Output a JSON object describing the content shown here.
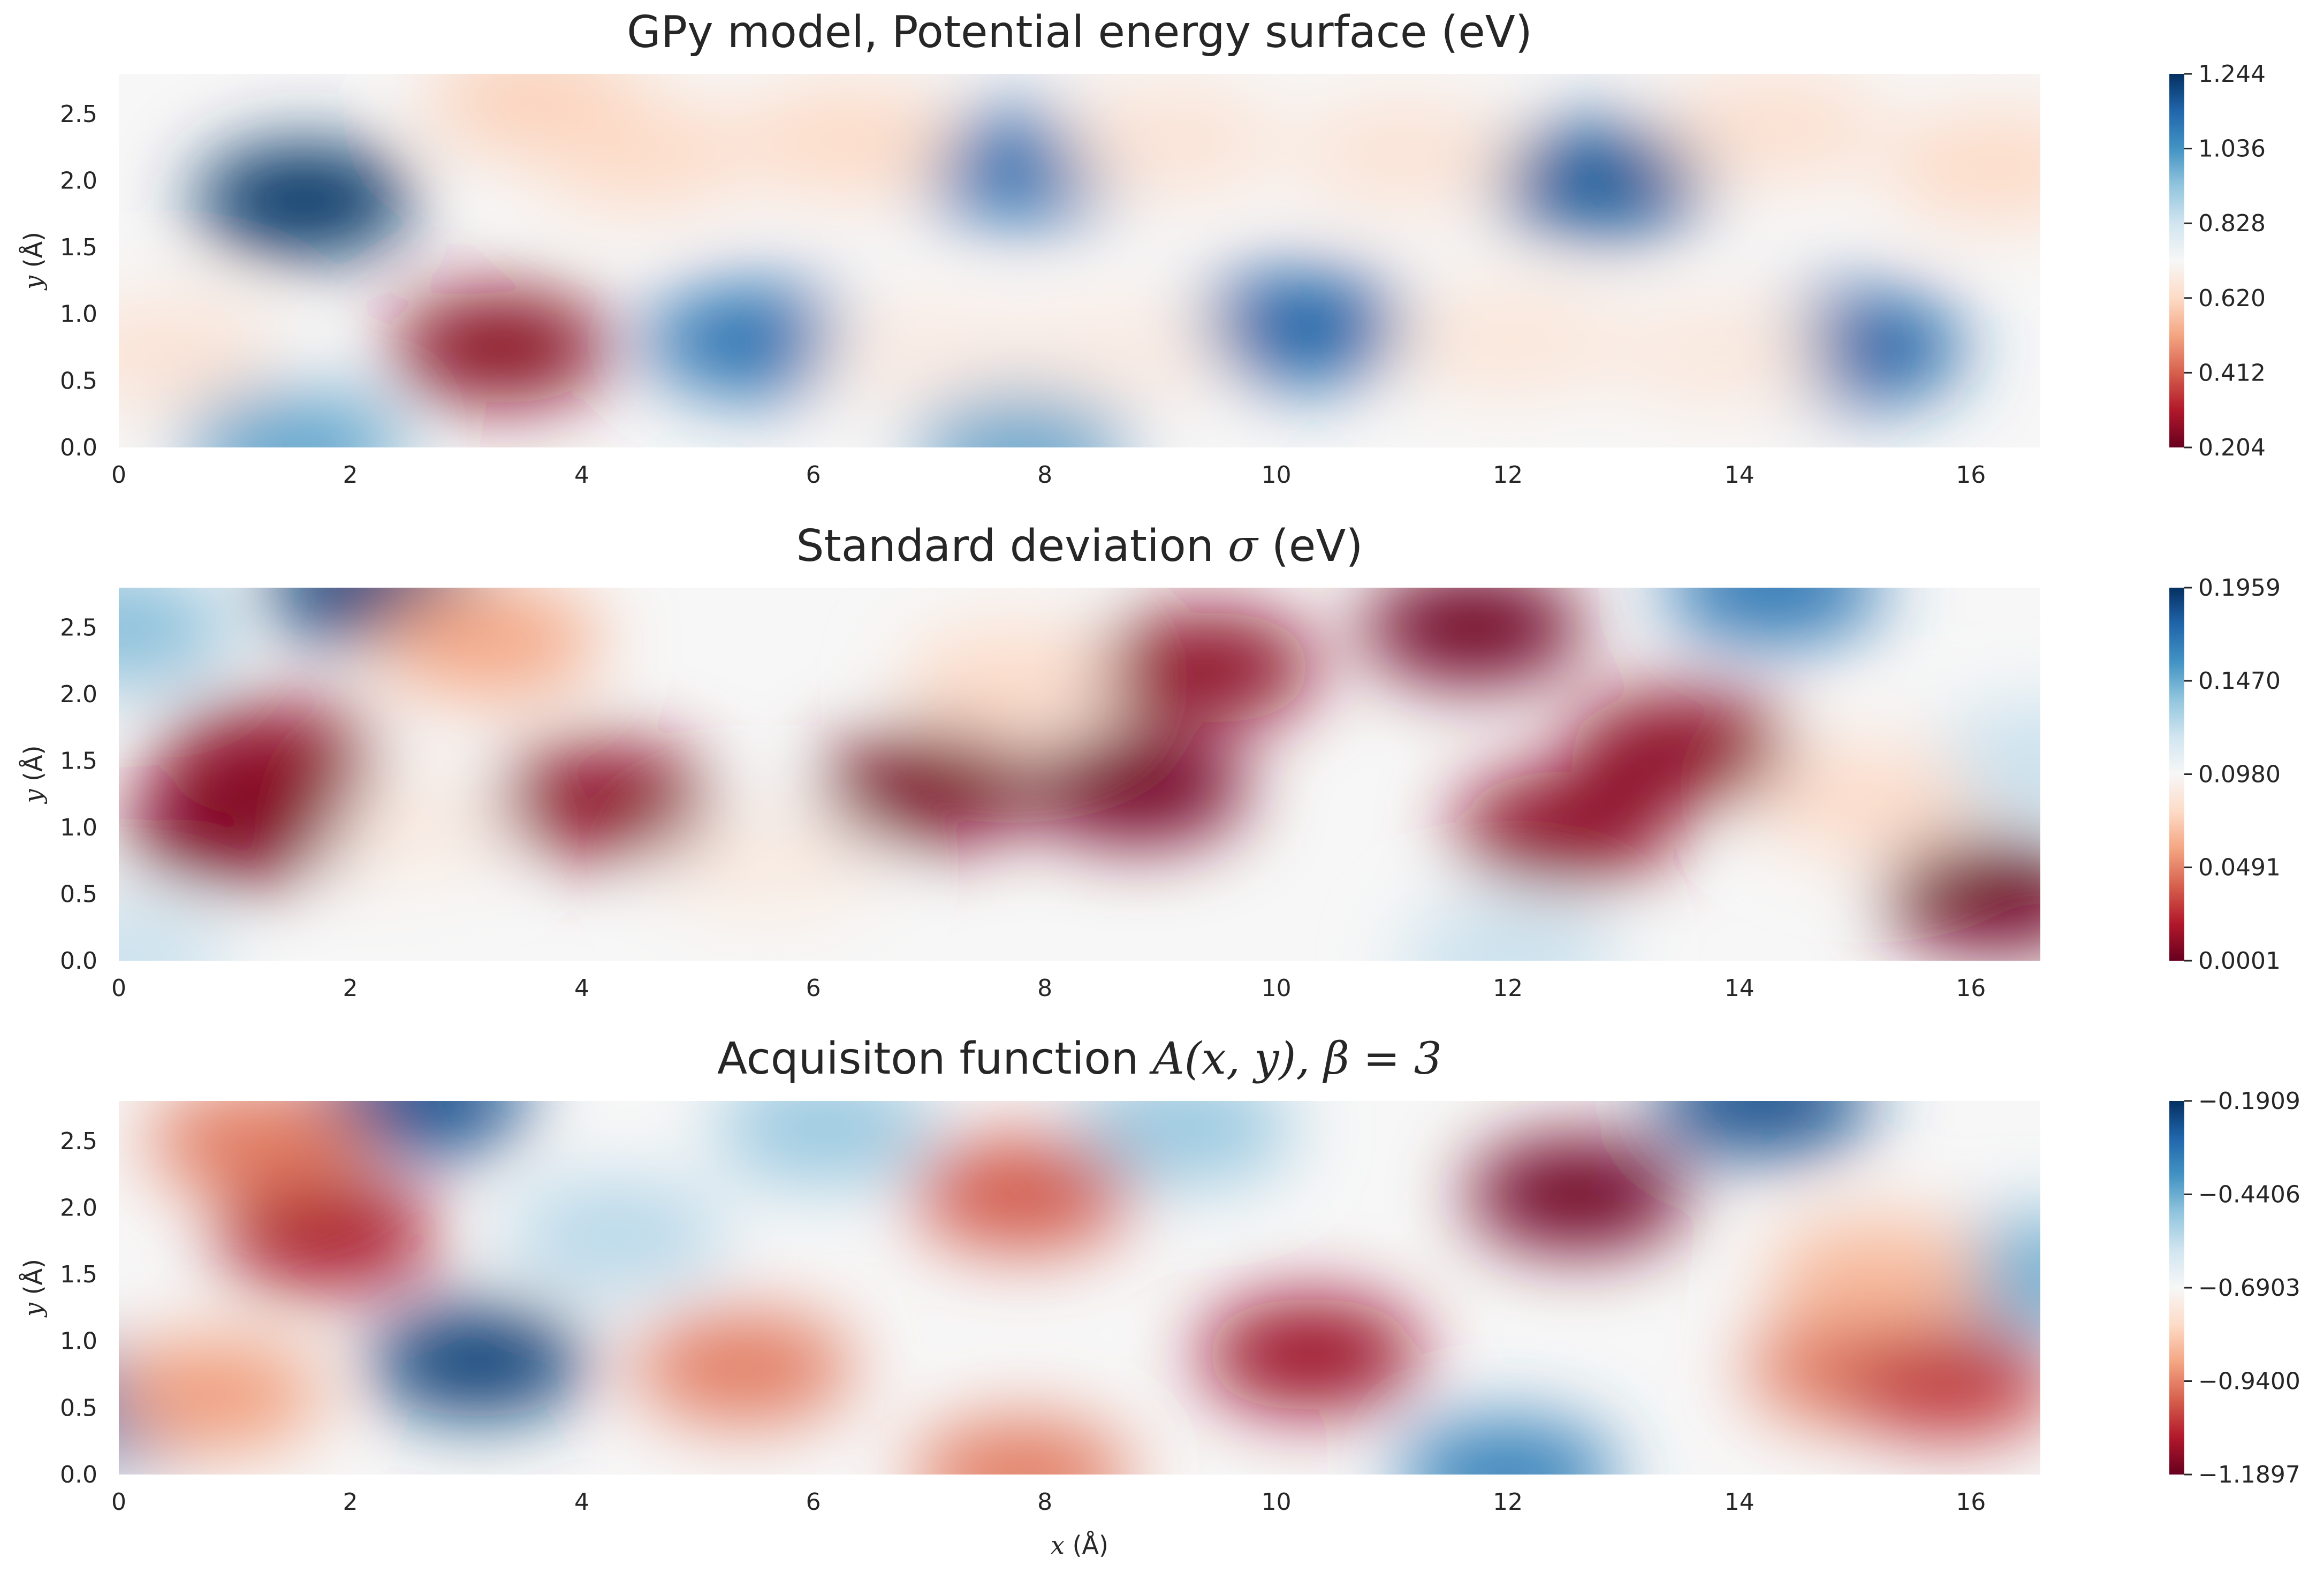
{
  "chart_data": [
    {
      "type": "heatmap",
      "title": "GPy model, Potential energy surface (eV)",
      "title_parts": {
        "text": "GPy model, Potential energy surface (eV)",
        "math": ""
      },
      "xlabel": "",
      "ylabel": "y (Å)",
      "xlim": [
        0,
        16.6
      ],
      "ylim": [
        0,
        2.8
      ],
      "xticks": [
        "0",
        "2",
        "4",
        "6",
        "8",
        "10",
        "12",
        "14",
        "16"
      ],
      "yticks": [
        "0.0",
        "0.5",
        "1.0",
        "1.5",
        "2.0",
        "2.5"
      ],
      "colorbar": {
        "cmap": "RdBu",
        "min": 0.204,
        "max": 1.244,
        "ticks": [
          "0.204",
          "0.412",
          "0.620",
          "0.828",
          "1.036",
          "1.244"
        ]
      },
      "features": [
        {
          "x": 1.6,
          "y": 1.85,
          "value": 1.24
        },
        {
          "x": 5.5,
          "y": 0.8,
          "value": 1.12
        },
        {
          "x": 7.8,
          "y": 2.1,
          "value": 1.12
        },
        {
          "x": 10.2,
          "y": 0.9,
          "value": 1.15
        },
        {
          "x": 12.8,
          "y": 2.0,
          "value": 1.17
        },
        {
          "x": 15.0,
          "y": 0.75,
          "value": 1.15
        },
        {
          "x": 1.5,
          "y": 0.0,
          "value": 1.0
        },
        {
          "x": 7.8,
          "y": 0.0,
          "value": 1.0
        },
        {
          "x": 3.3,
          "y": 0.75,
          "value": 0.25
        },
        {
          "x": 3.6,
          "y": 2.6,
          "value": 0.6
        },
        {
          "x": 0.4,
          "y": 0.7,
          "value": 0.65
        },
        {
          "x": 4.5,
          "y": 2.2,
          "value": 0.62
        },
        {
          "x": 6.3,
          "y": 2.3,
          "value": 0.62
        },
        {
          "x": 7.0,
          "y": 0.7,
          "value": 0.68
        },
        {
          "x": 8.6,
          "y": 0.7,
          "value": 0.68
        },
        {
          "x": 9.1,
          "y": 2.3,
          "value": 0.65
        },
        {
          "x": 11.1,
          "y": 2.2,
          "value": 0.65
        },
        {
          "x": 12.0,
          "y": 0.8,
          "value": 0.66
        },
        {
          "x": 13.8,
          "y": 0.7,
          "value": 0.67
        },
        {
          "x": 14.3,
          "y": 2.4,
          "value": 0.64
        },
        {
          "x": 16.2,
          "y": 2.1,
          "value": 0.62
        }
      ]
    },
    {
      "type": "heatmap",
      "title": "Standard deviation σ (eV)",
      "title_parts": {
        "text": "Standard deviation ",
        "math": "σ",
        "suffix": " (eV)"
      },
      "xlabel": "",
      "ylabel": "y (Å)",
      "xlim": [
        0,
        16.6
      ],
      "ylim": [
        0,
        2.8
      ],
      "xticks": [
        "0",
        "2",
        "4",
        "6",
        "8",
        "10",
        "12",
        "14",
        "16"
      ],
      "yticks": [
        "0.0",
        "0.5",
        "1.0",
        "1.5",
        "2.0",
        "2.5"
      ],
      "colorbar": {
        "cmap": "RdBu",
        "min": 0.0001,
        "max": 0.1959,
        "ticks": [
          "0.0001",
          "0.0491",
          "0.0980",
          "0.1470",
          "0.1959"
        ]
      },
      "features": [
        {
          "x": 2.2,
          "y": 2.8,
          "value": 0.19
        },
        {
          "x": 14.3,
          "y": 2.8,
          "value": 0.17
        },
        {
          "x": 0.0,
          "y": 2.5,
          "value": 0.14
        },
        {
          "x": 16.6,
          "y": 1.5,
          "value": 0.12
        },
        {
          "x": 12.0,
          "y": 0.0,
          "value": 0.12
        },
        {
          "x": 0.0,
          "y": 0.0,
          "value": 0.12
        },
        {
          "x": 5.6,
          "y": 0.7,
          "value": 0.09
        },
        {
          "x": 7.7,
          "y": 2.1,
          "value": 0.08
        },
        {
          "x": 2.4,
          "y": 1.0,
          "value": 0.09
        },
        {
          "x": 15.1,
          "y": 1.2,
          "value": 0.08
        },
        {
          "x": 3.2,
          "y": 2.4,
          "value": 0.06
        },
        {
          "x": 1.0,
          "y": 1.0,
          "value": 0.005
        },
        {
          "x": 1.3,
          "y": 1.5,
          "value": 0.01
        },
        {
          "x": 4.2,
          "y": 1.2,
          "value": 0.01
        },
        {
          "x": 7.0,
          "y": 1.3,
          "value": 0.005
        },
        {
          "x": 8.8,
          "y": 1.3,
          "value": 0.003
        },
        {
          "x": 9.4,
          "y": 2.2,
          "value": 0.01
        },
        {
          "x": 11.7,
          "y": 2.5,
          "value": 0.002
        },
        {
          "x": 12.5,
          "y": 1.0,
          "value": 0.01
        },
        {
          "x": 13.5,
          "y": 1.6,
          "value": 0.01
        },
        {
          "x": 16.2,
          "y": 0.5,
          "value": 0.002
        }
      ]
    },
    {
      "type": "heatmap",
      "title": "Acquisiton function A(x, y), β = 3",
      "title_parts": {
        "text": "Acquisiton function ",
        "math": "A(x, y), β = 3"
      },
      "xlabel": "x (Å)",
      "ylabel": "y (Å)",
      "xlim": [
        0,
        16.6
      ],
      "ylim": [
        0,
        2.8
      ],
      "xticks": [
        "0",
        "2",
        "4",
        "6",
        "8",
        "10",
        "12",
        "14",
        "16"
      ],
      "yticks": [
        "0.0",
        "0.5",
        "1.0",
        "1.5",
        "2.0",
        "2.5"
      ],
      "colorbar": {
        "cmap": "RdBu",
        "min": -1.1897,
        "max": -0.1909,
        "ticks": [
          "−1.1897",
          "−0.9400",
          "−0.6903",
          "−0.4406",
          "−0.1909"
        ]
      },
      "features": [
        {
          "x": 3.1,
          "y": 0.85,
          "value": -0.22
        },
        {
          "x": 2.6,
          "y": 2.8,
          "value": -0.25
        },
        {
          "x": 14.2,
          "y": 2.8,
          "value": -0.25
        },
        {
          "x": 12.0,
          "y": 0.0,
          "value": -0.35
        },
        {
          "x": 0.0,
          "y": 0.5,
          "value": -0.35
        },
        {
          "x": 16.6,
          "y": 1.5,
          "value": -0.45
        },
        {
          "x": 6.1,
          "y": 2.6,
          "value": -0.5
        },
        {
          "x": 9.2,
          "y": 2.6,
          "value": -0.5
        },
        {
          "x": 4.3,
          "y": 1.8,
          "value": -0.55
        },
        {
          "x": 1.8,
          "y": 1.8,
          "value": -1.1
        },
        {
          "x": 1.2,
          "y": 2.5,
          "value": -0.95
        },
        {
          "x": 0.8,
          "y": 0.6,
          "value": -0.9
        },
        {
          "x": 5.4,
          "y": 0.8,
          "value": -0.95
        },
        {
          "x": 7.8,
          "y": 2.1,
          "value": -1.0
        },
        {
          "x": 7.8,
          "y": 0.0,
          "value": -0.95
        },
        {
          "x": 10.3,
          "y": 0.9,
          "value": -1.12
        },
        {
          "x": 12.6,
          "y": 2.1,
          "value": -1.18
        },
        {
          "x": 15.0,
          "y": 0.8,
          "value": -0.95
        },
        {
          "x": 15.8,
          "y": 0.7,
          "value": -1.05
        },
        {
          "x": 15.2,
          "y": 1.5,
          "value": -0.85
        }
      ]
    }
  ]
}
